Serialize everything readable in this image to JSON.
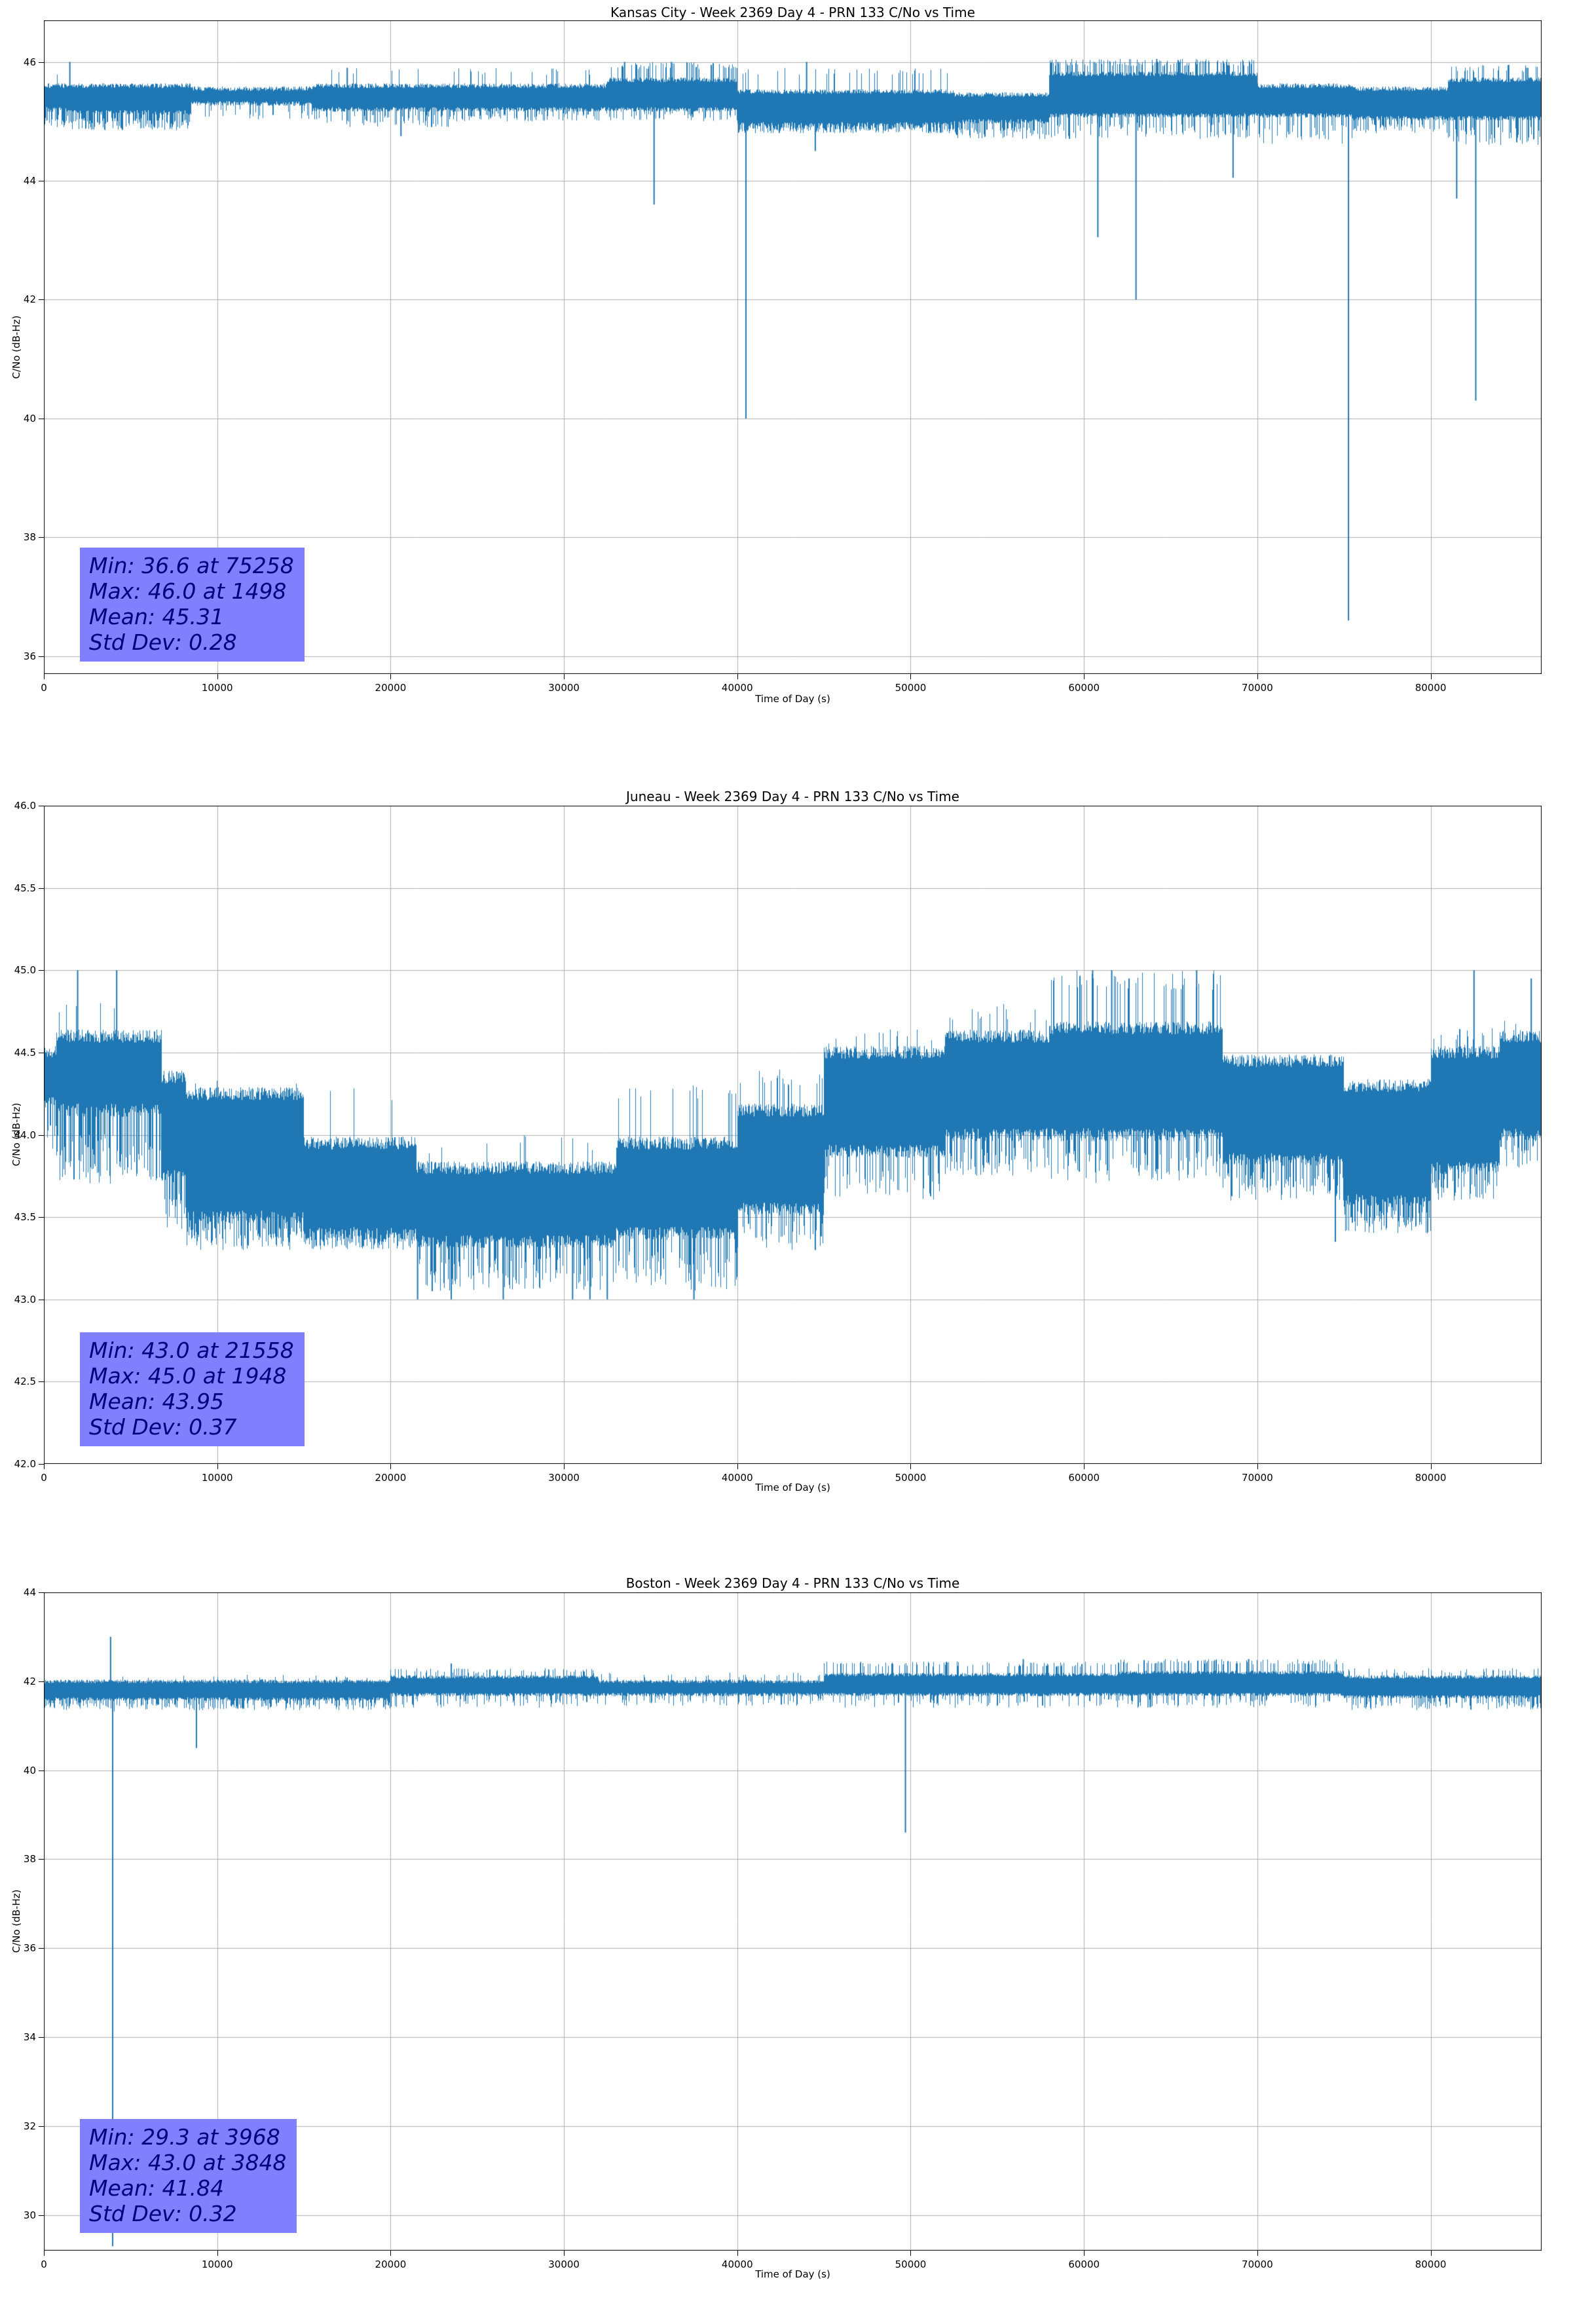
{
  "page": {
    "background": "#ffffff"
  },
  "style": {
    "line_color": "#1f77b4",
    "grid_color": "#b0b0b0",
    "stats_bg": "#8080ff",
    "stats_text": "#000080"
  },
  "chart_data": [
    {
      "type": "line",
      "station": "Kansas City",
      "title": "Kansas City - Week 2369 Day 4 - PRN 133 C/No vs Time",
      "xlabel": "Time of Day (s)",
      "ylabel": "C/No (dB-Hz)",
      "xlim": [
        0,
        86400
      ],
      "ylim": [
        35.7,
        46.7
      ],
      "xticks": [
        0,
        10000,
        20000,
        30000,
        40000,
        50000,
        60000,
        70000,
        80000
      ],
      "xtick_labels": [
        "0",
        "10000",
        "20000",
        "30000",
        "40000",
        "50000",
        "60000",
        "70000",
        "80000"
      ],
      "yticks": [
        36,
        38,
        40,
        42,
        44,
        46
      ],
      "ytick_labels": [
        "36",
        "38",
        "40",
        "42",
        "44",
        "46"
      ],
      "grid": true,
      "line_color": "#1f77b4",
      "seed": 7,
      "stats": {
        "min": 36.6,
        "min_time": 75258,
        "max": 46.0,
        "max_time": 1498,
        "mean": 45.31,
        "std_dev": 0.28
      },
      "stats_lines": [
        "Min: 36.6 at 75258",
        "Max: 46.0 at 1498",
        "Mean: 45.31",
        "Std Dev: 0.28"
      ],
      "band_segments": [
        {
          "x0": 0,
          "x1": 1500,
          "lo": 45.2,
          "hi": 45.6,
          "dp": 0.5,
          "dlo": 44.9,
          "up": 0.08,
          "uhi": 45.9
        },
        {
          "x0": 1500,
          "x1": 8500,
          "lo": 45.15,
          "hi": 45.6,
          "dp": 0.55,
          "dlo": 44.85
        },
        {
          "x0": 8500,
          "x1": 15500,
          "lo": 45.3,
          "hi": 45.55,
          "dp": 0.15,
          "dlo": 45.0
        },
        {
          "x0": 15500,
          "x1": 23500,
          "lo": 45.2,
          "hi": 45.6,
          "dp": 0.3,
          "dlo": 44.9,
          "up": 0.04,
          "uhi": 45.9
        },
        {
          "x0": 23500,
          "x1": 32500,
          "lo": 45.2,
          "hi": 45.6,
          "dp": 0.25,
          "dlo": 45.0,
          "up": 0.08,
          "uhi": 45.9
        },
        {
          "x0": 32500,
          "x1": 40000,
          "lo": 45.2,
          "hi": 45.7,
          "dp": 0.2,
          "dlo": 45.0,
          "up": 0.25,
          "uhi": 46.0
        },
        {
          "x0": 40000,
          "x1": 52500,
          "lo": 44.95,
          "hi": 45.5,
          "dp": 0.5,
          "dlo": 44.8,
          "up": 0.08,
          "uhi": 45.9
        },
        {
          "x0": 52500,
          "x1": 58000,
          "lo": 45.0,
          "hi": 45.45,
          "dp": 0.4,
          "dlo": 44.7
        },
        {
          "x0": 58000,
          "x1": 70000,
          "lo": 45.1,
          "hi": 45.8,
          "dp": 0.3,
          "dlo": 44.7,
          "up": 0.35,
          "uhi": 46.05
        },
        {
          "x0": 70000,
          "x1": 75500,
          "lo": 45.1,
          "hi": 45.6,
          "dp": 0.3,
          "dlo": 44.6
        },
        {
          "x0": 75500,
          "x1": 81000,
          "lo": 45.05,
          "hi": 45.55,
          "dp": 0.35,
          "dlo": 44.8
        },
        {
          "x0": 81000,
          "x1": 86400,
          "lo": 45.05,
          "hi": 45.7,
          "dp": 0.4,
          "dlo": 44.6,
          "up": 0.18,
          "uhi": 45.95
        }
      ],
      "down_spikes": [
        [
          20600,
          44.75
        ],
        [
          35200,
          43.6
        ],
        [
          40500,
          40.0
        ],
        [
          44500,
          44.5
        ],
        [
          60800,
          43.05
        ],
        [
          63000,
          42.0
        ],
        [
          68600,
          44.05
        ],
        [
          75258,
          36.6
        ],
        [
          81500,
          43.7
        ],
        [
          82600,
          40.3
        ]
      ],
      "up_spikes": [
        [
          1498,
          46.0
        ],
        [
          17500,
          45.9
        ],
        [
          33500,
          46.0
        ],
        [
          36200,
          46.0
        ],
        [
          38500,
          45.95
        ],
        [
          44000,
          46.0
        ],
        [
          58500,
          46.0
        ],
        [
          61500,
          46.0
        ],
        [
          64200,
          46.05
        ],
        [
          65500,
          46.0
        ],
        [
          67200,
          46.0
        ],
        [
          84500,
          45.95
        ],
        [
          85600,
          45.9
        ]
      ]
    },
    {
      "type": "line",
      "station": "Juneau",
      "title": "Juneau - Week 2369 Day 4 - PRN 133 C/No vs Time",
      "xlabel": "Time of Day (s)",
      "ylabel": "C/No (dB-Hz)",
      "xlim": [
        0,
        86400
      ],
      "ylim": [
        42.0,
        46.0
      ],
      "xticks": [
        0,
        10000,
        20000,
        30000,
        40000,
        50000,
        60000,
        70000,
        80000
      ],
      "xtick_labels": [
        "0",
        "10000",
        "20000",
        "30000",
        "40000",
        "50000",
        "60000",
        "70000",
        "80000"
      ],
      "yticks": [
        42.0,
        42.5,
        43.0,
        43.5,
        44.0,
        44.5,
        45.0,
        45.5,
        46.0
      ],
      "ytick_labels": [
        "42.0",
        "42.5",
        "43.0",
        "43.5",
        "44.0",
        "44.5",
        "45.0",
        "45.5",
        "46.0"
      ],
      "grid": true,
      "line_color": "#1f77b4",
      "seed": 11,
      "stats": {
        "min": 43.0,
        "min_time": 21558,
        "max": 45.0,
        "max_time": 1948,
        "mean": 43.95,
        "std_dev": 0.37
      },
      "stats_lines": [
        "Min: 43.0 at 21558",
        "Max: 45.0 at 1948",
        "Mean: 43.95",
        "Std Dev: 0.37"
      ],
      "band_segments": [
        {
          "x0": 0,
          "x1": 700,
          "lo": 44.2,
          "hi": 44.5,
          "dp": 0.3,
          "dlo": 43.9
        },
        {
          "x0": 700,
          "x1": 6800,
          "lo": 44.15,
          "hi": 44.6,
          "dp": 0.45,
          "dlo": 43.7,
          "up": 0.04,
          "uhi": 44.85
        },
        {
          "x0": 6800,
          "x1": 8200,
          "lo": 43.75,
          "hi": 44.35,
          "dp": 0.5,
          "dlo": 43.4
        },
        {
          "x0": 8200,
          "x1": 15000,
          "lo": 43.5,
          "hi": 44.25,
          "dp": 0.5,
          "dlo": 43.3,
          "up": 0.02,
          "uhi": 44.35
        },
        {
          "x0": 15000,
          "x1": 21500,
          "lo": 43.4,
          "hi": 43.95,
          "dp": 0.45,
          "dlo": 43.3,
          "up": 0.04,
          "uhi": 44.3
        },
        {
          "x0": 21500,
          "x1": 33000,
          "lo": 43.35,
          "hi": 43.8,
          "dp": 0.35,
          "dlo": 43.05,
          "up": 0.03,
          "uhi": 44.0
        },
        {
          "x0": 33000,
          "x1": 40000,
          "lo": 43.4,
          "hi": 43.95,
          "dp": 0.3,
          "dlo": 43.05,
          "up": 0.08,
          "uhi": 44.3
        },
        {
          "x0": 40000,
          "x1": 45000,
          "lo": 43.55,
          "hi": 44.15,
          "dp": 0.3,
          "dlo": 43.3,
          "up": 0.12,
          "uhi": 44.4
        },
        {
          "x0": 45000,
          "x1": 52000,
          "lo": 43.9,
          "hi": 44.5,
          "dp": 0.3,
          "dlo": 43.6,
          "up": 0.1,
          "uhi": 44.65
        },
        {
          "x0": 52000,
          "x1": 58000,
          "lo": 44.0,
          "hi": 44.6,
          "dp": 0.3,
          "dlo": 43.75,
          "up": 0.08,
          "uhi": 44.8
        },
        {
          "x0": 58000,
          "x1": 68000,
          "lo": 44.0,
          "hi": 44.65,
          "dp": 0.3,
          "dlo": 43.7,
          "up": 0.15,
          "uhi": 45.0
        },
        {
          "x0": 68000,
          "x1": 75000,
          "lo": 43.85,
          "hi": 44.45,
          "dp": 0.4,
          "dlo": 43.6
        },
        {
          "x0": 75000,
          "x1": 80000,
          "lo": 43.6,
          "hi": 44.3,
          "dp": 0.5,
          "dlo": 43.4
        },
        {
          "x0": 80000,
          "x1": 84000,
          "lo": 43.8,
          "hi": 44.5,
          "dp": 0.4,
          "dlo": 43.6,
          "up": 0.12,
          "uhi": 44.65
        },
        {
          "x0": 84000,
          "x1": 86400,
          "lo": 44.0,
          "hi": 44.6,
          "dp": 0.3,
          "dlo": 43.8,
          "up": 0.1,
          "uhi": 44.7
        }
      ],
      "down_spikes": [
        [
          21558,
          43.0
        ],
        [
          22400,
          43.05
        ],
        [
          23500,
          43.0
        ],
        [
          26500,
          43.0
        ],
        [
          30500,
          43.0
        ],
        [
          31500,
          43.0
        ],
        [
          32500,
          43.0
        ],
        [
          37500,
          43.0
        ],
        [
          44500,
          43.3
        ],
        [
          74500,
          43.35
        ]
      ],
      "up_spikes": [
        [
          1948,
          45.0
        ],
        [
          4200,
          45.0
        ],
        [
          60500,
          45.0
        ],
        [
          61600,
          45.0
        ],
        [
          62600,
          44.95
        ],
        [
          66500,
          45.0
        ],
        [
          82500,
          45.0
        ],
        [
          85800,
          44.95
        ]
      ]
    },
    {
      "type": "line",
      "station": "Boston",
      "title": "Boston - Week 2369 Day 4 - PRN 133 C/No vs Time",
      "xlabel": "Time of Day (s)",
      "ylabel": "C/No (dB-Hz)",
      "xlim": [
        0,
        86400
      ],
      "ylim": [
        29.2,
        44.0
      ],
      "xticks": [
        0,
        10000,
        20000,
        30000,
        40000,
        50000,
        60000,
        70000,
        80000
      ],
      "xtick_labels": [
        "0",
        "10000",
        "20000",
        "30000",
        "40000",
        "50000",
        "60000",
        "70000",
        "80000"
      ],
      "yticks": [
        30,
        32,
        34,
        36,
        38,
        40,
        42,
        44
      ],
      "ytick_labels": [
        "30",
        "32",
        "34",
        "36",
        "38",
        "40",
        "42",
        "44"
      ],
      "grid": true,
      "line_color": "#1f77b4",
      "seed": 13,
      "stats": {
        "min": 29.3,
        "min_time": 3968,
        "max": 43.0,
        "max_time": 3848,
        "mean": 41.84,
        "std_dev": 0.32
      },
      "stats_lines": [
        "Min: 29.3 at 3968",
        "Max: 43.0 at 3848",
        "Mean: 41.84",
        "Std Dev: 0.32"
      ],
      "band_segments": [
        {
          "x0": 0,
          "x1": 3800,
          "lo": 41.6,
          "hi": 42.0,
          "dp": 0.3,
          "dlo": 41.35
        },
        {
          "x0": 3800,
          "x1": 4100,
          "lo": 41.6,
          "hi": 42.0,
          "dp": 0.3,
          "dlo": 41.3
        },
        {
          "x0": 4100,
          "x1": 20000,
          "lo": 41.6,
          "hi": 42.0,
          "dp": 0.3,
          "dlo": 41.35,
          "up": 0.05,
          "uhi": 42.15
        },
        {
          "x0": 20000,
          "x1": 32000,
          "lo": 41.7,
          "hi": 42.1,
          "dp": 0.2,
          "dlo": 41.4,
          "up": 0.18,
          "uhi": 42.3
        },
        {
          "x0": 32000,
          "x1": 45000,
          "lo": 41.7,
          "hi": 42.0,
          "dp": 0.2,
          "dlo": 41.45,
          "up": 0.08,
          "uhi": 42.2
        },
        {
          "x0": 45000,
          "x1": 62000,
          "lo": 41.7,
          "hi": 42.15,
          "dp": 0.2,
          "dlo": 41.4,
          "up": 0.22,
          "uhi": 42.45
        },
        {
          "x0": 62000,
          "x1": 75000,
          "lo": 41.7,
          "hi": 42.2,
          "dp": 0.2,
          "dlo": 41.4,
          "up": 0.28,
          "uhi": 42.5
        },
        {
          "x0": 75000,
          "x1": 86400,
          "lo": 41.65,
          "hi": 42.1,
          "dp": 0.3,
          "dlo": 41.35,
          "up": 0.12,
          "uhi": 42.3
        }
      ],
      "down_spikes": [
        [
          3968,
          29.3
        ],
        [
          8800,
          40.5
        ],
        [
          49700,
          38.6
        ]
      ],
      "up_spikes": [
        [
          3848,
          43.0
        ],
        [
          23500,
          42.4
        ],
        [
          56500,
          42.5
        ],
        [
          69500,
          42.5
        ]
      ]
    }
  ]
}
